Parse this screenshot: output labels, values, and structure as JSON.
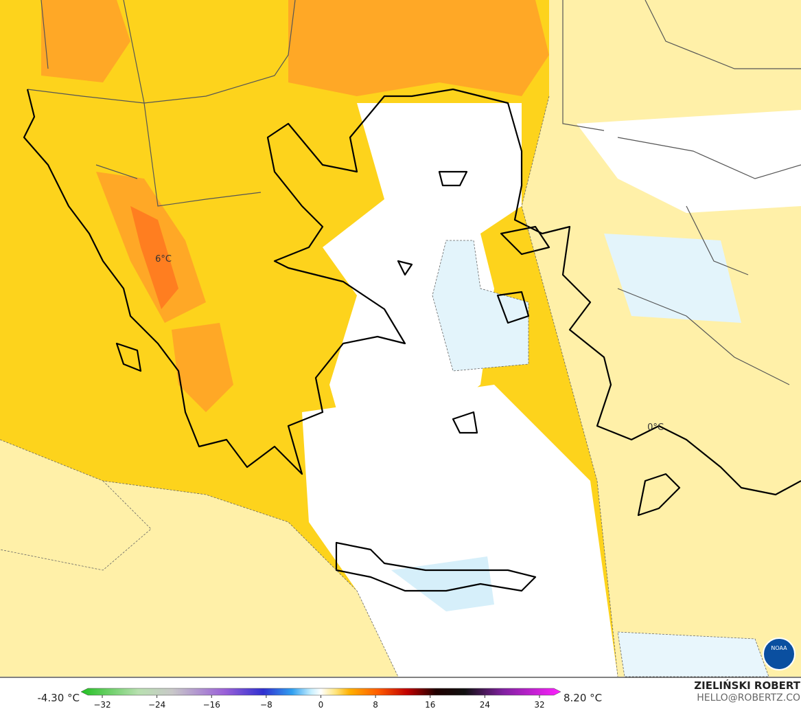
{
  "map": {
    "contour_labels": [
      "6°C",
      "0°C"
    ]
  },
  "colorbar": {
    "min_label": "-4.30 °C",
    "max_label": "8.20 °C",
    "ticks": [
      "−32",
      "−24",
      "−16",
      "−8",
      "0",
      "8",
      "16",
      "24",
      "32"
    ]
  },
  "credit": {
    "name": "ZIELIŃSKI ROBERT",
    "contact": "HELLO@ROBERTZ.CO"
  },
  "logo": {
    "text": "NOAA"
  }
}
